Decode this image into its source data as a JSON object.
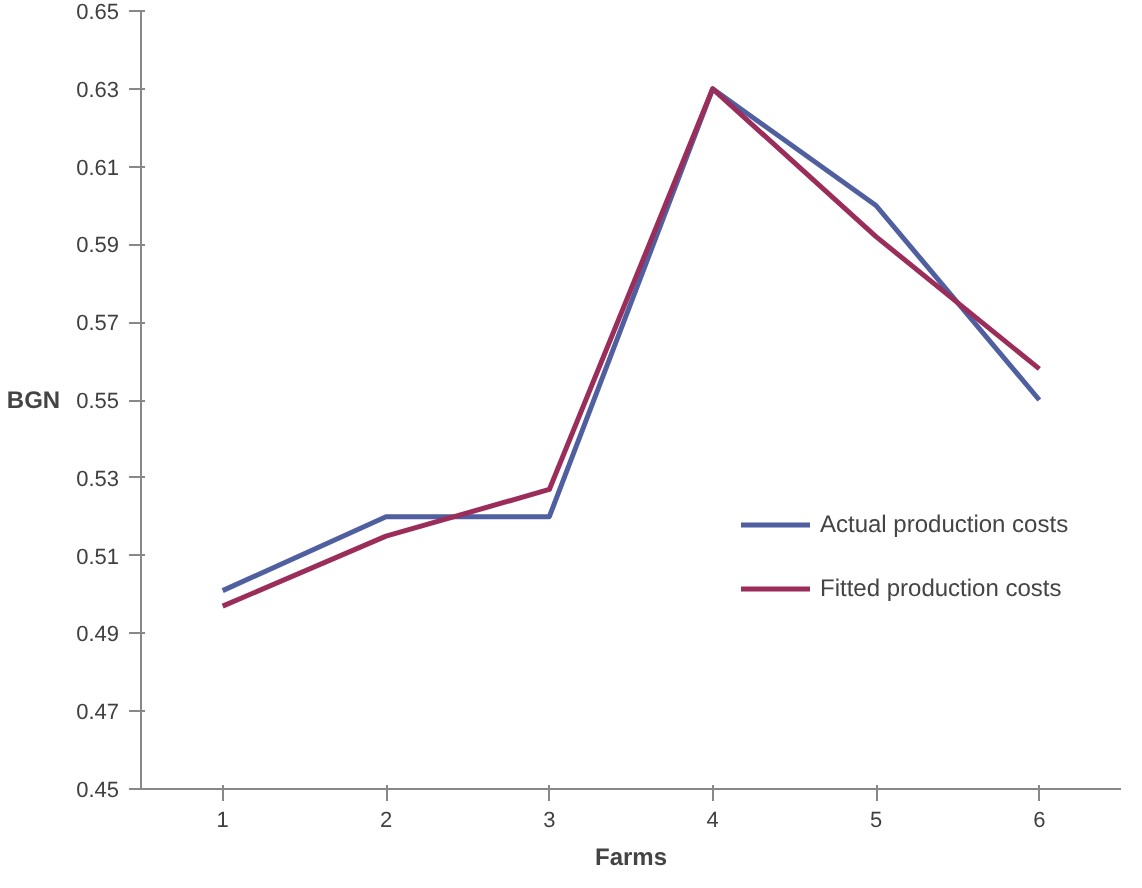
{
  "chart_data": {
    "type": "line",
    "xlabel": "Farms",
    "ylabel": "BGN",
    "categories": [
      "1",
      "2",
      "3",
      "4",
      "5",
      "6"
    ],
    "series": [
      {
        "name": "Actual production costs",
        "color": "#4f5f9f",
        "values": [
          0.501,
          0.52,
          0.52,
          0.63,
          0.6,
          0.55
        ]
      },
      {
        "name": "Fitted production costs",
        "color": "#9b2d5a",
        "values": [
          0.497,
          0.515,
          0.527,
          0.63,
          0.592,
          0.558
        ]
      }
    ],
    "ylim": [
      0.45,
      0.65
    ],
    "yticks": [
      0.45,
      0.47,
      0.49,
      0.51,
      0.53,
      0.55,
      0.57,
      0.59,
      0.61,
      0.63,
      0.65
    ],
    "grid": false,
    "legend": "right",
    "marker": "none",
    "line_style": "solid"
  }
}
